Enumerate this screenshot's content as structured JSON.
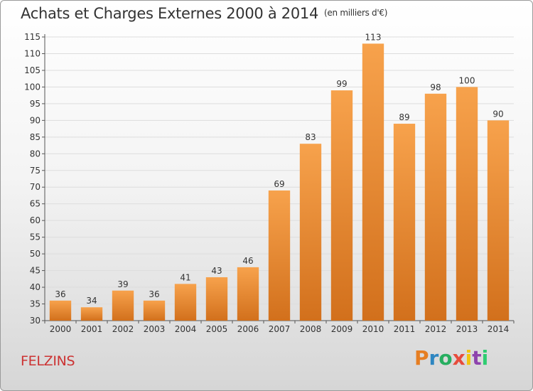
{
  "title": "Achats et Charges Externes 2000 à 2014",
  "unit_label": "(en milliers d'€)",
  "place_name": "FELZINS",
  "brand": {
    "letters": [
      "P",
      "r",
      "o",
      "x",
      "i",
      "t",
      "i"
    ],
    "colors": [
      "#e67e22",
      "#2e86c1",
      "#27ae60",
      "#e74c3c",
      "#f1c40f",
      "#8e44ad",
      "#2ecc71"
    ]
  },
  "chart_data": {
    "type": "bar",
    "categories": [
      "2000",
      "2001",
      "2002",
      "2003",
      "2004",
      "2005",
      "2006",
      "2007",
      "2008",
      "2009",
      "2010",
      "2011",
      "2012",
      "2013",
      "2014"
    ],
    "values": [
      36,
      34,
      39,
      36,
      41,
      43,
      46,
      69,
      83,
      99,
      113,
      89,
      98,
      100,
      90
    ],
    "ylim": [
      30,
      115
    ],
    "yticks": [
      30,
      35,
      40,
      45,
      50,
      55,
      60,
      65,
      70,
      75,
      80,
      85,
      90,
      95,
      100,
      105,
      110,
      115
    ],
    "grid": true,
    "bar_color": "#f0923a"
  }
}
